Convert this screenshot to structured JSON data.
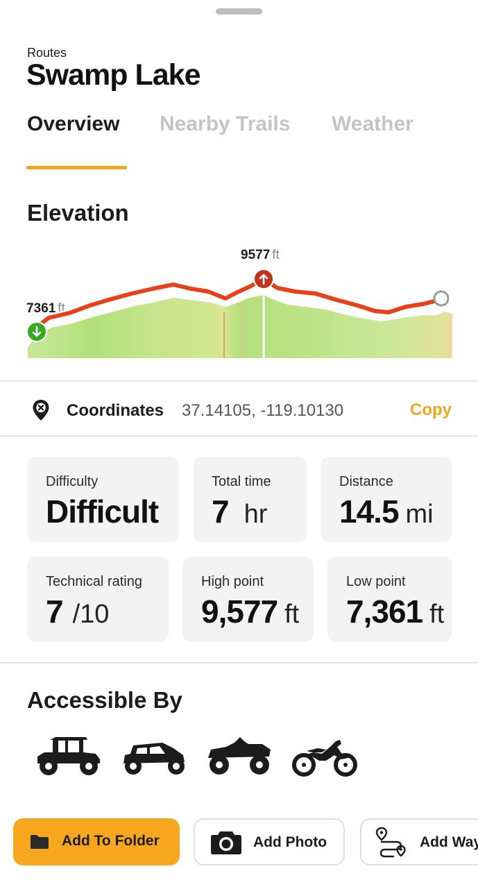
{
  "header": {
    "breadcrumb": "Routes",
    "title": "Swamp Lake"
  },
  "tabs": [
    {
      "label": "Overview",
      "active": true
    },
    {
      "label": "Nearby Trails",
      "active": false
    },
    {
      "label": "Weather",
      "active": false
    }
  ],
  "elevation": {
    "section_title": "Elevation",
    "start": {
      "value": "7361",
      "unit": "ft"
    },
    "peak": {
      "value": "9577",
      "unit": "ft"
    }
  },
  "coordinates": {
    "icon": "location-pin-icon",
    "label": "Coordinates",
    "value": "37.14105, -119.10130",
    "action": "Copy"
  },
  "stats": [
    {
      "key": "difficulty",
      "label": "Difficulty",
      "value": "Difficult",
      "unit": ""
    },
    {
      "key": "total_time",
      "label": "Total time",
      "value": "7",
      "unit": "hr"
    },
    {
      "key": "distance",
      "label": "Distance",
      "value": "14.5",
      "unit": "mi"
    },
    {
      "key": "technical",
      "label": "Technical rating",
      "value": "7",
      "unit": "/10"
    },
    {
      "key": "high_point",
      "label": "High point",
      "value": "9,577",
      "unit": "ft"
    },
    {
      "key": "low_point",
      "label": "Low point",
      "value": "7,361",
      "unit": "ft"
    }
  ],
  "accessible": {
    "section_title": "Accessible By",
    "vehicles": [
      "utv-icon",
      "side-by-side-icon",
      "atv-icon",
      "dirt-bike-icon"
    ]
  },
  "actions": [
    {
      "label": "Add To Folder",
      "icon": "folder-icon"
    },
    {
      "label": "Add Photo",
      "icon": "camera-icon"
    },
    {
      "label": "Add Waypoint",
      "icon": "waypoint-route-icon"
    }
  ],
  "colors": {
    "accent": "#f2a51d",
    "route_line": "#e8411a",
    "start_marker": "#3aa81e",
    "peak_marker": "#c4321a",
    "grade_fill": "#b8e07a"
  }
}
